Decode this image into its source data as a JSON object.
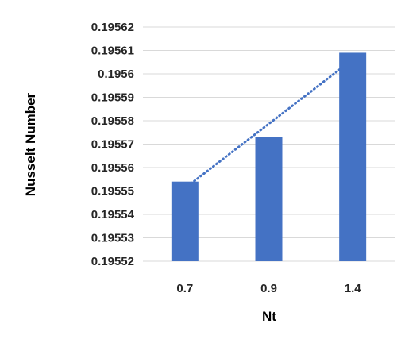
{
  "chart_data": {
    "type": "bar",
    "title": "",
    "xlabel": "Nt",
    "ylabel": "Nusselt Number",
    "categories": [
      "0.7",
      "0.9",
      "1.4"
    ],
    "values": [
      0.195554,
      0.195573,
      0.195609
    ],
    "ylim": [
      0.19552,
      0.19562
    ],
    "yticks": [
      "0.19552",
      "0.19553",
      "0.19554",
      "0.19555",
      "0.19556",
      "0.19557",
      "0.19558",
      "0.19559",
      "0.1956",
      "0.19561",
      "0.19562"
    ],
    "grid": true,
    "legend": "none",
    "trendline": {
      "type": "linear",
      "style": "dotted"
    },
    "colors": {
      "bar": "#4472C4",
      "trendline": "#4472C4",
      "grid": "#d9d9d9",
      "text": "#262626"
    }
  }
}
